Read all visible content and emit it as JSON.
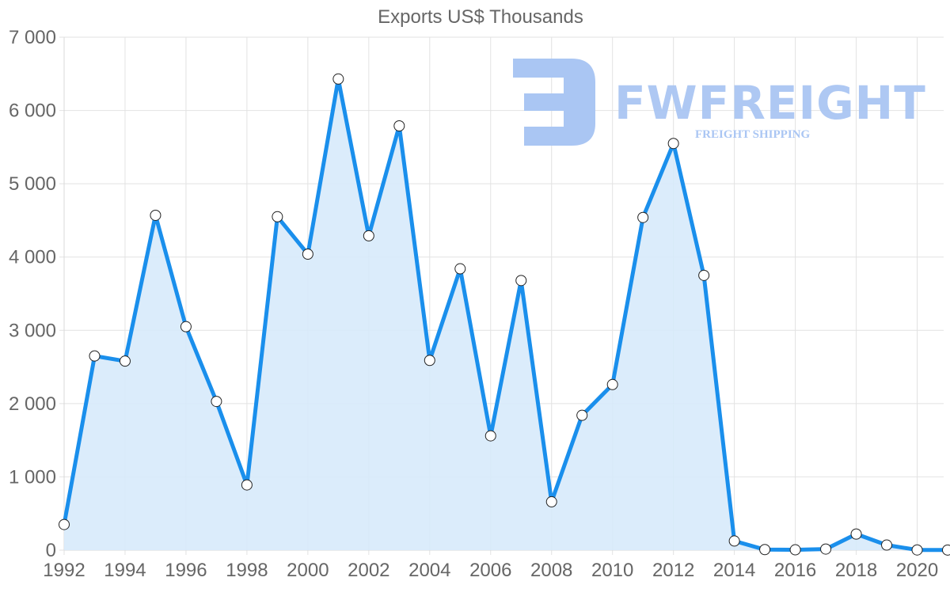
{
  "chart_data": {
    "type": "line",
    "title": "Exports US$ Thousands",
    "xlabel": "",
    "ylabel": "",
    "x": [
      1992,
      1993,
      1994,
      1995,
      1996,
      1997,
      1998,
      1999,
      2000,
      2001,
      2002,
      2003,
      2004,
      2005,
      2006,
      2007,
      2008,
      2009,
      2010,
      2011,
      2012,
      2013,
      2014,
      2015,
      2016,
      2017,
      2018,
      2019,
      2020,
      2021
    ],
    "series": [
      {
        "name": "Exports US$ Thousands",
        "values": [
          350,
          2650,
          2580,
          4570,
          3050,
          2030,
          890,
          4550,
          4040,
          6430,
          4290,
          5790,
          2590,
          3840,
          1560,
          3680,
          660,
          1840,
          2260,
          4540,
          5550,
          3750,
          125,
          8,
          5,
          15,
          220,
          70,
          3,
          2
        ],
        "color": "#1a8fec",
        "fill": "#d7eafb"
      }
    ],
    "x_tick_labels": [
      "1992",
      "1994",
      "1996",
      "1998",
      "2000",
      "2002",
      "2004",
      "2006",
      "2008",
      "2010",
      "2012",
      "2014",
      "2016",
      "2018",
      "2020"
    ],
    "y_tick_labels": [
      "0",
      "1 000",
      "2 000",
      "3 000",
      "4 000",
      "5 000",
      "6 000",
      "7 000"
    ],
    "ylim": [
      0,
      7000
    ],
    "xlim": [
      1992,
      2021
    ],
    "grid": true,
    "legend": "none",
    "filled_area": true
  },
  "watermark": {
    "brand": "FWFREIGHT",
    "tagline": "FREIGHT SHIPPING",
    "color": "#aac6f3"
  }
}
